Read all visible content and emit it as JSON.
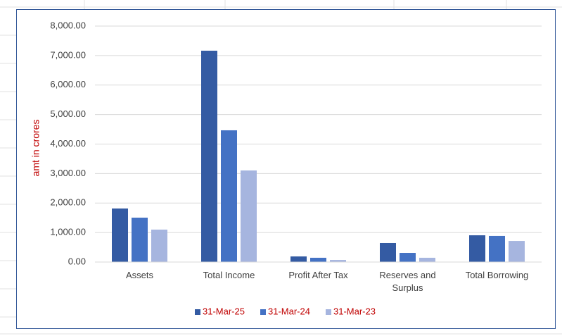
{
  "chart_data": {
    "type": "bar",
    "y_label": "amt in crores",
    "categories": [
      "Assets",
      "Total Income",
      "Profit After Tax",
      "Reserves and Surplus",
      "Total Borrowing"
    ],
    "series": [
      {
        "name": "31-Mar-25",
        "color": "#345ba3",
        "values": [
          1815,
          7165,
          190,
          645,
          907
        ]
      },
      {
        "name": "31-Mar-24",
        "color": "#4472c4",
        "values": [
          1505,
          4466,
          145,
          310,
          885
        ]
      },
      {
        "name": "31-Mar-23",
        "color": "#a6b5df",
        "values": [
          1100,
          3105,
          70,
          145,
          715
        ]
      }
    ],
    "ylim": [
      0,
      8000
    ],
    "yticks": [
      {
        "value": 0,
        "label": "0.00"
      },
      {
        "value": 1000,
        "label": "1,000.00"
      },
      {
        "value": 2000,
        "label": "2,000.00"
      },
      {
        "value": 3000,
        "label": "3,000.00"
      },
      {
        "value": 4000,
        "label": "4,000.00"
      },
      {
        "value": 5000,
        "label": "5,000.00"
      },
      {
        "value": 6000,
        "label": "6,000.00"
      },
      {
        "value": 7000,
        "label": "7,000.00"
      },
      {
        "value": 8000,
        "label": "8,000.00"
      }
    ],
    "grid": true,
    "legend": "bottom",
    "legend_text_color": "#c00000",
    "y_label_color": "#c00000"
  }
}
